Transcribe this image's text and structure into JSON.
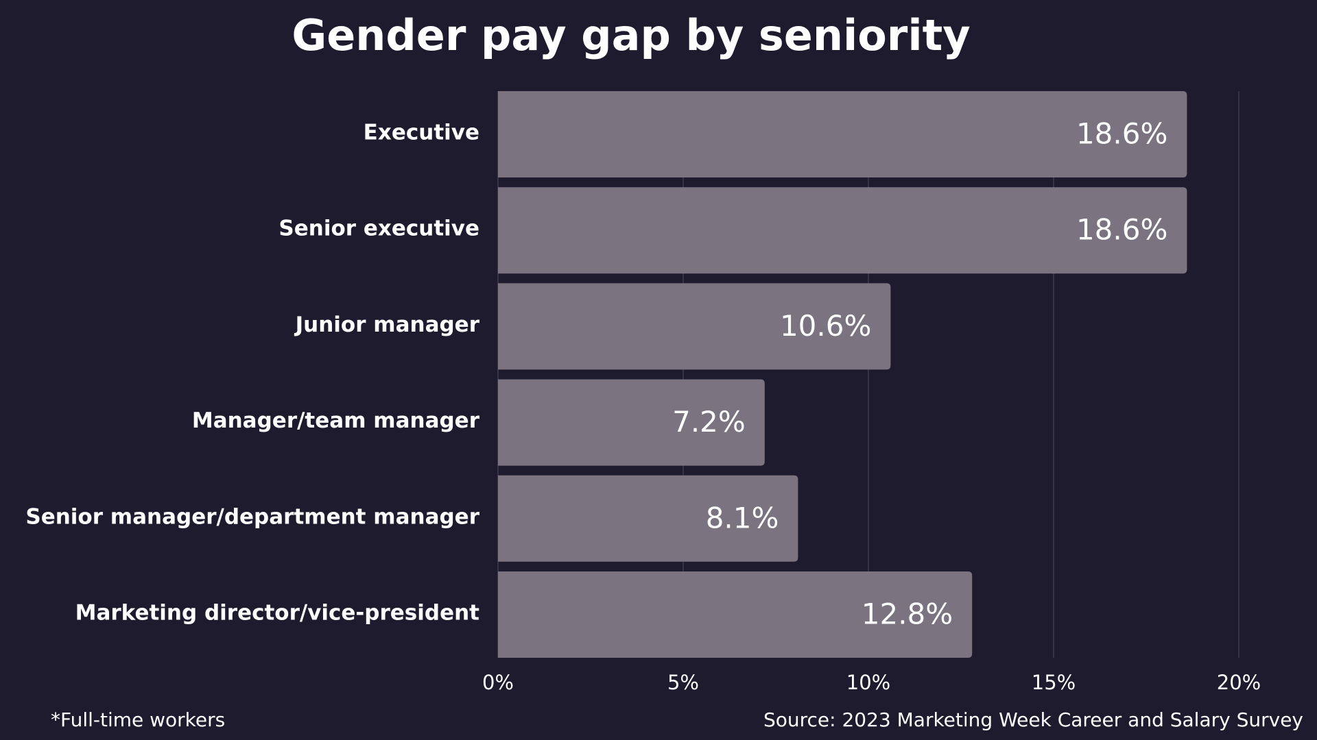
{
  "chart_data": {
    "type": "bar",
    "orientation": "horizontal",
    "title": "Gender pay gap by seniority",
    "categories": [
      "Executive",
      "Senior executive",
      "Junior manager",
      "Manager/team manager",
      "Senior manager/department manager",
      "Marketing director/vice-president"
    ],
    "values": [
      18.6,
      18.6,
      10.6,
      7.2,
      8.1,
      12.8
    ],
    "value_labels": [
      "18.6%",
      "18.6%",
      "10.6%",
      "7.2%",
      "8.1%",
      "12.8%"
    ],
    "color": "#7b7380",
    "xlim": [
      0,
      20
    ],
    "xticks": [
      {
        "value": 0,
        "label": "0%"
      },
      {
        "value": 5,
        "label": "5%"
      },
      {
        "value": 10,
        "label": "10%"
      },
      {
        "value": 15,
        "label": "15%"
      },
      {
        "value": 20,
        "label": "20%"
      }
    ],
    "grid": true,
    "footnote": "*Full-time workers",
    "source": "Source: 2023 Marketing Week Career and Salary Survey"
  }
}
